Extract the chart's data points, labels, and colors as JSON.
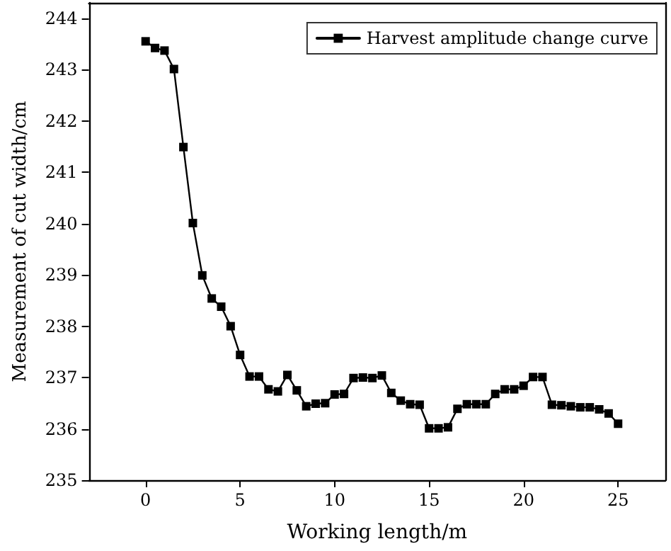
{
  "chart_data": {
    "type": "line",
    "xlabel": "Working length/m",
    "ylabel": "Measurement of cut width/cm",
    "x": [
      0,
      0.5,
      1,
      1.5,
      2,
      2.5,
      3,
      3.5,
      4,
      4.5,
      5,
      5.5,
      6,
      6.5,
      7,
      7.5,
      8,
      8.5,
      9,
      9.5,
      10,
      10.5,
      11,
      11.5,
      12,
      12.5,
      13,
      13.5,
      14,
      14.5,
      15,
      15.5,
      16,
      16.5,
      17,
      17.5,
      18,
      18.5,
      19,
      19.5,
      20,
      20.5,
      21,
      21.5,
      22,
      22.5,
      23,
      23.5,
      24,
      24.5,
      25
    ],
    "series": [
      {
        "name": "Harvest amplitude change curve",
        "color": "#000000",
        "values": [
          243.55,
          243.42,
          243.37,
          243.01,
          241.49,
          240.01,
          238.99,
          238.54,
          238.38,
          238.0,
          237.44,
          237.02,
          237.02,
          236.77,
          236.73,
          237.05,
          236.75,
          236.44,
          236.49,
          236.5,
          236.67,
          236.68,
          236.99,
          237.0,
          236.99,
          237.04,
          236.7,
          236.55,
          236.48,
          236.47,
          236.01,
          236.01,
          236.03,
          236.39,
          236.48,
          236.48,
          236.48,
          236.68,
          236.77,
          236.77,
          236.84,
          237.01,
          237.01,
          236.47,
          236.46,
          236.44,
          236.42,
          236.42,
          236.38,
          236.3,
          236.1
        ]
      }
    ],
    "xlim": [
      -3,
      27.5
    ],
    "xticks": [
      0,
      5,
      10,
      15,
      20,
      25
    ],
    "ylim": [
      235,
      244.3
    ],
    "yticks": [
      235,
      236,
      237,
      238,
      239,
      240,
      241,
      242,
      243,
      244
    ],
    "legend": "top right",
    "marker": "square",
    "line_style": "solid",
    "grid": false
  }
}
